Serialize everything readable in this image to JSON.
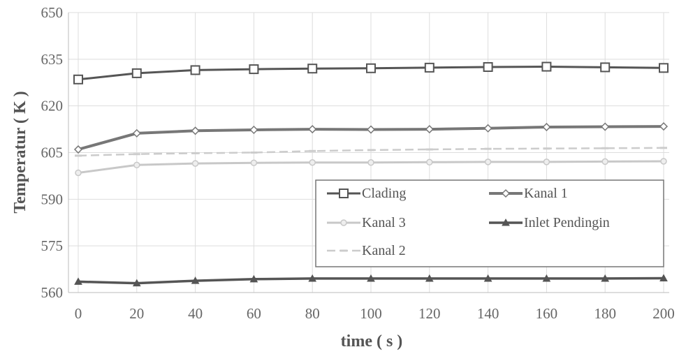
{
  "chart_data": {
    "type": "line",
    "xlabel": "time ( s )",
    "ylabel": "Temperatur ( K )",
    "x": [
      0,
      20,
      40,
      60,
      80,
      100,
      120,
      140,
      160,
      180,
      200
    ],
    "xlim": [
      0,
      200
    ],
    "ylim": [
      560,
      650
    ],
    "x_ticks": [
      "0",
      "20",
      "40",
      "60",
      "80",
      "100",
      "120",
      "140",
      "160",
      "180",
      "200"
    ],
    "y_ticks": [
      "650",
      "635",
      "620",
      "605",
      "590",
      "575",
      "560"
    ],
    "grid": true,
    "legend_position": "lower-right",
    "series": [
      {
        "name": "Clading",
        "values": [
          628.5,
          630.5,
          631.5,
          631.8,
          632.0,
          632.1,
          632.3,
          632.5,
          632.6,
          632.4,
          632.2
        ],
        "color": "#555555",
        "marker": "square"
      },
      {
        "name": "Kanal 1",
        "values": [
          606.0,
          611.2,
          612.0,
          612.3,
          612.5,
          612.4,
          612.5,
          612.8,
          613.2,
          613.3,
          613.4
        ],
        "color": "#777777",
        "marker": "diamond"
      },
      {
        "name": "Kanal 3",
        "values": [
          598.5,
          601.0,
          601.5,
          601.7,
          601.8,
          601.8,
          601.9,
          602.0,
          602.0,
          602.1,
          602.2
        ],
        "color": "#c8c8c8",
        "marker": "circle"
      },
      {
        "name": "Inlet Pendingin",
        "values": [
          563.5,
          563.0,
          563.8,
          564.3,
          564.5,
          564.5,
          564.5,
          564.5,
          564.5,
          564.5,
          564.6
        ],
        "color": "#555555",
        "marker": "triangle"
      },
      {
        "name": "Kanal 2",
        "values": [
          604.0,
          604.5,
          604.8,
          605.0,
          605.5,
          605.8,
          606.0,
          606.2,
          606.3,
          606.4,
          606.5
        ],
        "color": "#cccccc",
        "marker": "dash"
      }
    ]
  }
}
